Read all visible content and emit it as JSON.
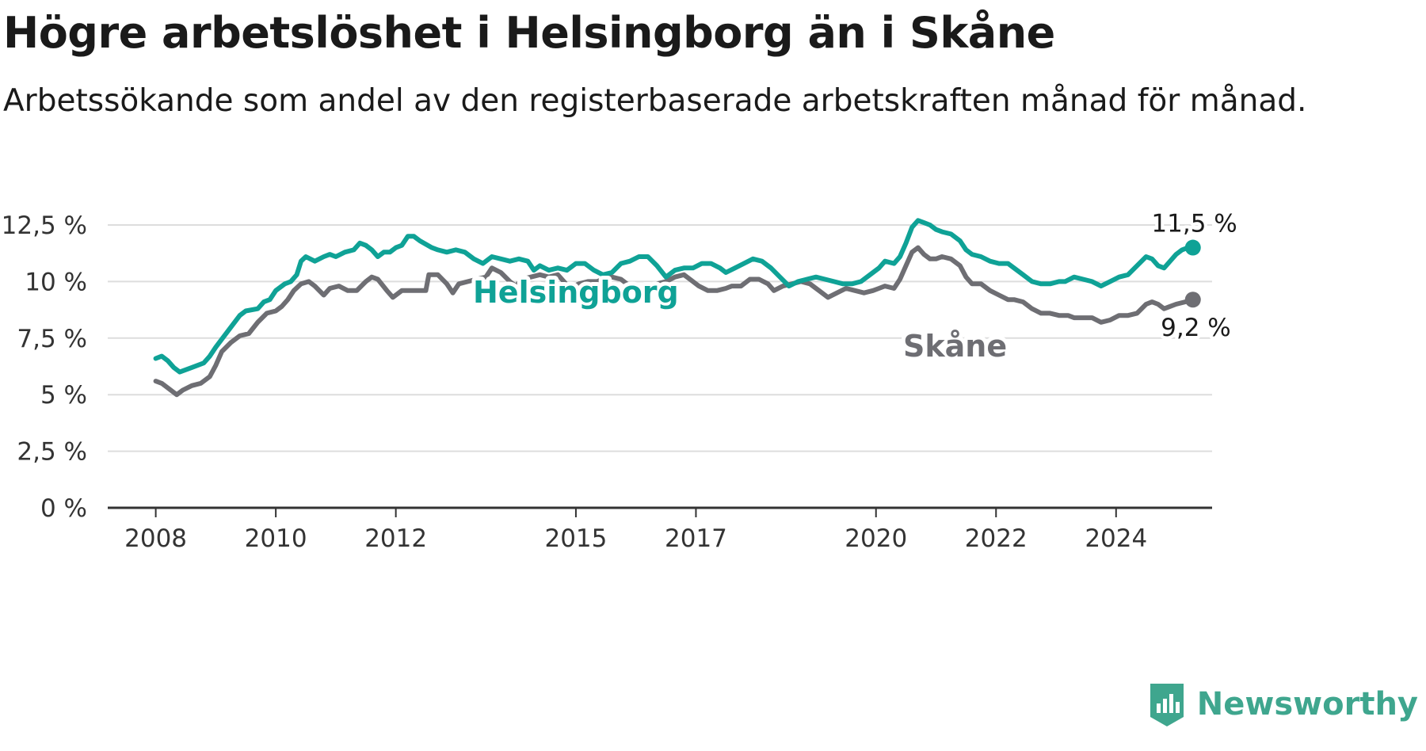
{
  "header": {
    "title": "Högre arbetslöshet i Helsingborg än i Skåne",
    "subtitle": "Arbetssökande som andel av den registerbaserade arbetskraften månad för månad."
  },
  "brand": {
    "name": "Newsworthy",
    "color": "#3fa68e",
    "icon": "newsworthy-bar-chart-icon"
  },
  "colors": {
    "helsingborg": "#0fa296",
    "skane": "#6e6e73",
    "grid": "#dddddd",
    "axis": "#333333"
  },
  "chart_data": {
    "type": "line",
    "xlim": [
      2007.2,
      2025.6
    ],
    "ylim": [
      0,
      12.5
    ],
    "x_ticks": [
      {
        "value": 2008,
        "label": "2008"
      },
      {
        "value": 2010,
        "label": "2010"
      },
      {
        "value": 2012,
        "label": "2012"
      },
      {
        "value": 2015,
        "label": "2015"
      },
      {
        "value": 2017,
        "label": "2017"
      },
      {
        "value": 2020,
        "label": "2020"
      },
      {
        "value": 2022,
        "label": "2022"
      },
      {
        "value": 2024,
        "label": "2024"
      }
    ],
    "y_ticks": [
      {
        "value": 0,
        "label": "0 %"
      },
      {
        "value": 2.5,
        "label": "2,5 %"
      },
      {
        "value": 5,
        "label": "5 %"
      },
      {
        "value": 7.5,
        "label": "7,5 %"
      },
      {
        "value": 10,
        "label": "10 %"
      },
      {
        "value": 12.5,
        "label": "12,5 %"
      }
    ],
    "grid": true,
    "series": [
      {
        "name": "Helsingborg",
        "end_label": "11,5 %",
        "points": [
          [
            2008.0,
            6.6
          ],
          [
            2008.1,
            6.7
          ],
          [
            2008.2,
            6.5
          ],
          [
            2008.3,
            6.2
          ],
          [
            2008.4,
            6.0
          ],
          [
            2008.6,
            6.2
          ],
          [
            2008.8,
            6.4
          ],
          [
            2008.9,
            6.7
          ],
          [
            2009.0,
            7.1
          ],
          [
            2009.2,
            7.8
          ],
          [
            2009.4,
            8.5
          ],
          [
            2009.5,
            8.7
          ],
          [
            2009.7,
            8.8
          ],
          [
            2009.8,
            9.1
          ],
          [
            2009.9,
            9.2
          ],
          [
            2010.0,
            9.6
          ],
          [
            2010.15,
            9.9
          ],
          [
            2010.25,
            10.0
          ],
          [
            2010.35,
            10.3
          ],
          [
            2010.42,
            10.9
          ],
          [
            2010.5,
            11.1
          ],
          [
            2010.65,
            10.9
          ],
          [
            2010.8,
            11.1
          ],
          [
            2010.9,
            11.2
          ],
          [
            2011.0,
            11.1
          ],
          [
            2011.15,
            11.3
          ],
          [
            2011.3,
            11.4
          ],
          [
            2011.4,
            11.7
          ],
          [
            2011.5,
            11.6
          ],
          [
            2011.6,
            11.4
          ],
          [
            2011.7,
            11.1
          ],
          [
            2011.8,
            11.3
          ],
          [
            2011.9,
            11.3
          ],
          [
            2012.0,
            11.5
          ],
          [
            2012.1,
            11.6
          ],
          [
            2012.2,
            12.0
          ],
          [
            2012.3,
            12.0
          ],
          [
            2012.4,
            11.8
          ],
          [
            2012.6,
            11.5
          ],
          [
            2012.7,
            11.4
          ],
          [
            2012.85,
            11.3
          ],
          [
            2013.0,
            11.4
          ],
          [
            2013.15,
            11.3
          ],
          [
            2013.3,
            11.0
          ],
          [
            2013.45,
            10.8
          ],
          [
            2013.6,
            11.1
          ],
          [
            2013.75,
            11.0
          ],
          [
            2013.9,
            10.9
          ],
          [
            2014.05,
            11.0
          ],
          [
            2014.2,
            10.9
          ],
          [
            2014.3,
            10.5
          ],
          [
            2014.4,
            10.7
          ],
          [
            2014.55,
            10.5
          ],
          [
            2014.7,
            10.6
          ],
          [
            2014.85,
            10.5
          ],
          [
            2015.0,
            10.8
          ],
          [
            2015.15,
            10.8
          ],
          [
            2015.3,
            10.5
          ],
          [
            2015.45,
            10.3
          ],
          [
            2015.6,
            10.4
          ],
          [
            2015.75,
            10.8
          ],
          [
            2015.9,
            10.9
          ],
          [
            2016.05,
            11.1
          ],
          [
            2016.2,
            11.1
          ],
          [
            2016.35,
            10.7
          ],
          [
            2016.5,
            10.2
          ],
          [
            2016.65,
            10.5
          ],
          [
            2016.8,
            10.6
          ],
          [
            2016.95,
            10.6
          ],
          [
            2017.1,
            10.8
          ],
          [
            2017.25,
            10.8
          ],
          [
            2017.4,
            10.6
          ],
          [
            2017.5,
            10.4
          ],
          [
            2017.65,
            10.6
          ],
          [
            2017.8,
            10.8
          ],
          [
            2017.95,
            11.0
          ],
          [
            2018.1,
            10.9
          ],
          [
            2018.25,
            10.6
          ],
          [
            2018.4,
            10.2
          ],
          [
            2018.55,
            9.8
          ],
          [
            2018.7,
            10.0
          ],
          [
            2018.85,
            10.1
          ],
          [
            2019.0,
            10.2
          ],
          [
            2019.15,
            10.1
          ],
          [
            2019.3,
            10.0
          ],
          [
            2019.45,
            9.9
          ],
          [
            2019.6,
            9.9
          ],
          [
            2019.75,
            10.0
          ],
          [
            2019.9,
            10.3
          ],
          [
            2020.05,
            10.6
          ],
          [
            2020.15,
            10.9
          ],
          [
            2020.3,
            10.8
          ],
          [
            2020.4,
            11.1
          ],
          [
            2020.5,
            11.7
          ],
          [
            2020.6,
            12.4
          ],
          [
            2020.7,
            12.7
          ],
          [
            2020.8,
            12.6
          ],
          [
            2020.9,
            12.5
          ],
          [
            2021.0,
            12.3
          ],
          [
            2021.1,
            12.2
          ],
          [
            2021.25,
            12.1
          ],
          [
            2021.4,
            11.8
          ],
          [
            2021.5,
            11.4
          ],
          [
            2021.6,
            11.2
          ],
          [
            2021.75,
            11.1
          ],
          [
            2021.9,
            10.9
          ],
          [
            2022.05,
            10.8
          ],
          [
            2022.2,
            10.8
          ],
          [
            2022.3,
            10.6
          ],
          [
            2022.45,
            10.3
          ],
          [
            2022.6,
            10.0
          ],
          [
            2022.75,
            9.9
          ],
          [
            2022.9,
            9.9
          ],
          [
            2023.05,
            10.0
          ],
          [
            2023.15,
            10.0
          ],
          [
            2023.3,
            10.2
          ],
          [
            2023.45,
            10.1
          ],
          [
            2023.6,
            10.0
          ],
          [
            2023.75,
            9.8
          ],
          [
            2023.9,
            10.0
          ],
          [
            2024.05,
            10.2
          ],
          [
            2024.2,
            10.3
          ],
          [
            2024.35,
            10.7
          ],
          [
            2024.5,
            11.1
          ],
          [
            2024.6,
            11.0
          ],
          [
            2024.7,
            10.7
          ],
          [
            2024.8,
            10.6
          ],
          [
            2024.9,
            10.9
          ],
          [
            2025.0,
            11.2
          ],
          [
            2025.1,
            11.4
          ],
          [
            2025.2,
            11.5
          ],
          [
            2025.28,
            11.5
          ]
        ]
      },
      {
        "name": "Skåne",
        "end_label": "9,2 %",
        "points": [
          [
            2008.0,
            5.6
          ],
          [
            2008.1,
            5.5
          ],
          [
            2008.2,
            5.3
          ],
          [
            2008.35,
            5.0
          ],
          [
            2008.45,
            5.2
          ],
          [
            2008.6,
            5.4
          ],
          [
            2008.75,
            5.5
          ],
          [
            2008.9,
            5.8
          ],
          [
            2009.0,
            6.3
          ],
          [
            2009.1,
            6.9
          ],
          [
            2009.25,
            7.3
          ],
          [
            2009.4,
            7.6
          ],
          [
            2009.55,
            7.7
          ],
          [
            2009.7,
            8.2
          ],
          [
            2009.85,
            8.6
          ],
          [
            2010.0,
            8.7
          ],
          [
            2010.1,
            8.9
          ],
          [
            2010.2,
            9.2
          ],
          [
            2010.3,
            9.6
          ],
          [
            2010.42,
            9.9
          ],
          [
            2010.55,
            10.0
          ],
          [
            2010.65,
            9.8
          ],
          [
            2010.8,
            9.4
          ],
          [
            2010.9,
            9.7
          ],
          [
            2011.05,
            9.8
          ],
          [
            2011.2,
            9.6
          ],
          [
            2011.35,
            9.6
          ],
          [
            2011.5,
            10.0
          ],
          [
            2011.6,
            10.2
          ],
          [
            2011.7,
            10.1
          ],
          [
            2011.85,
            9.6
          ],
          [
            2011.95,
            9.3
          ],
          [
            2012.1,
            9.6
          ],
          [
            2012.25,
            9.6
          ],
          [
            2012.4,
            9.6
          ],
          [
            2012.5,
            9.6
          ],
          [
            2012.55,
            10.3
          ],
          [
            2012.7,
            10.3
          ],
          [
            2012.85,
            9.9
          ],
          [
            2012.95,
            9.5
          ],
          [
            2013.05,
            9.9
          ],
          [
            2013.2,
            10.0
          ],
          [
            2013.35,
            10.1
          ],
          [
            2013.5,
            10.2
          ],
          [
            2013.6,
            10.6
          ],
          [
            2013.75,
            10.4
          ],
          [
            2013.9,
            10.0
          ],
          [
            2014.0,
            9.8
          ],
          [
            2014.1,
            10.1
          ],
          [
            2014.25,
            10.2
          ],
          [
            2014.4,
            10.3
          ],
          [
            2014.55,
            10.2
          ],
          [
            2014.7,
            10.3
          ],
          [
            2014.8,
            10.0
          ],
          [
            2014.9,
            9.7
          ],
          [
            2015.05,
            9.9
          ],
          [
            2015.2,
            10.0
          ],
          [
            2015.35,
            10.0
          ],
          [
            2015.45,
            10.1
          ],
          [
            2015.6,
            10.2
          ],
          [
            2015.75,
            10.1
          ],
          [
            2015.9,
            9.8
          ],
          [
            2016.05,
            9.6
          ],
          [
            2016.2,
            9.8
          ],
          [
            2016.35,
            9.9
          ],
          [
            2016.5,
            10.0
          ],
          [
            2016.65,
            10.2
          ],
          [
            2016.8,
            10.3
          ],
          [
            2016.9,
            10.1
          ],
          [
            2017.05,
            9.8
          ],
          [
            2017.2,
            9.6
          ],
          [
            2017.35,
            9.6
          ],
          [
            2017.5,
            9.7
          ],
          [
            2017.6,
            9.8
          ],
          [
            2017.75,
            9.8
          ],
          [
            2017.9,
            10.1
          ],
          [
            2018.05,
            10.1
          ],
          [
            2018.2,
            9.9
          ],
          [
            2018.3,
            9.6
          ],
          [
            2018.45,
            9.8
          ],
          [
            2018.6,
            9.9
          ],
          [
            2018.75,
            10.0
          ],
          [
            2018.9,
            9.9
          ],
          [
            2019.05,
            9.6
          ],
          [
            2019.2,
            9.3
          ],
          [
            2019.35,
            9.5
          ],
          [
            2019.5,
            9.7
          ],
          [
            2019.65,
            9.6
          ],
          [
            2019.8,
            9.5
          ],
          [
            2019.95,
            9.6
          ],
          [
            2020.05,
            9.7
          ],
          [
            2020.15,
            9.8
          ],
          [
            2020.3,
            9.7
          ],
          [
            2020.4,
            10.1
          ],
          [
            2020.5,
            10.7
          ],
          [
            2020.6,
            11.3
          ],
          [
            2020.7,
            11.5
          ],
          [
            2020.8,
            11.2
          ],
          [
            2020.9,
            11.0
          ],
          [
            2021.0,
            11.0
          ],
          [
            2021.1,
            11.1
          ],
          [
            2021.25,
            11.0
          ],
          [
            2021.4,
            10.7
          ],
          [
            2021.5,
            10.2
          ],
          [
            2021.6,
            9.9
          ],
          [
            2021.75,
            9.9
          ],
          [
            2021.9,
            9.6
          ],
          [
            2022.05,
            9.4
          ],
          [
            2022.2,
            9.2
          ],
          [
            2022.3,
            9.2
          ],
          [
            2022.45,
            9.1
          ],
          [
            2022.6,
            8.8
          ],
          [
            2022.75,
            8.6
          ],
          [
            2022.9,
            8.6
          ],
          [
            2023.05,
            8.5
          ],
          [
            2023.2,
            8.5
          ],
          [
            2023.3,
            8.4
          ],
          [
            2023.45,
            8.4
          ],
          [
            2023.6,
            8.4
          ],
          [
            2023.75,
            8.2
          ],
          [
            2023.9,
            8.3
          ],
          [
            2024.05,
            8.5
          ],
          [
            2024.2,
            8.5
          ],
          [
            2024.35,
            8.6
          ],
          [
            2024.5,
            9.0
          ],
          [
            2024.6,
            9.1
          ],
          [
            2024.7,
            9.0
          ],
          [
            2024.8,
            8.8
          ],
          [
            2024.9,
            8.9
          ],
          [
            2025.0,
            9.0
          ],
          [
            2025.15,
            9.1
          ],
          [
            2025.28,
            9.2
          ]
        ]
      }
    ]
  }
}
